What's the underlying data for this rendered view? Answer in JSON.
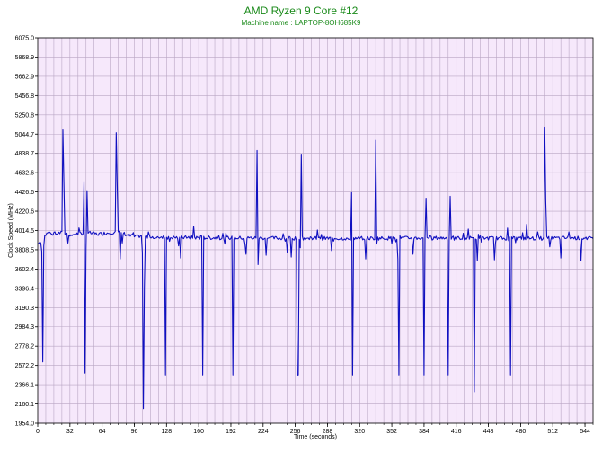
{
  "chart_data": {
    "type": "line",
    "title": "AMD Ryzen 9 Core #12",
    "subtitle": "Machine name : LAPTOP-8OH685K9",
    "xlabel": "Time (seconds)",
    "ylabel": "Clock Speed (MHz)",
    "xlim": [
      0,
      552
    ],
    "ylim": [
      1954.0,
      6075.0
    ],
    "x_ticks": [
      0,
      32,
      64,
      96,
      128,
      160,
      192,
      224,
      256,
      288,
      320,
      352,
      384,
      416,
      448,
      480,
      512,
      544
    ],
    "y_ticks": [
      "1954.0",
      "2160.1",
      "2366.1",
      "2572.2",
      "2778.2",
      "2984.3",
      "3190.3",
      "3396.4",
      "3602.4",
      "3808.5",
      "4014.5",
      "4220.6",
      "4426.6",
      "4632.6",
      "4838.7",
      "5044.7",
      "5250.8",
      "5456.8",
      "5662.9",
      "5868.9",
      "6075.0"
    ],
    "grid": true,
    "line_color": "#1010c0",
    "plot_bg": "#f6e8fb",
    "grid_color": "#b9a6c4",
    "series": [
      {
        "baseline": [
          [
            0,
            3880
          ],
          [
            3,
            3900
          ],
          [
            6,
            3950
          ],
          [
            10,
            3990
          ],
          [
            15,
            4000
          ],
          [
            20,
            3985
          ],
          [
            26,
            3990
          ],
          [
            32,
            3970
          ],
          [
            40,
            3980
          ],
          [
            50,
            3990
          ],
          [
            60,
            3975
          ],
          [
            70,
            3990
          ],
          [
            76,
            3995
          ],
          [
            85,
            3985
          ],
          [
            90,
            3960
          ],
          [
            96,
            3950
          ],
          [
            110,
            3950
          ],
          [
            130,
            3940
          ],
          [
            200,
            3935
          ],
          [
            300,
            3930
          ],
          [
            400,
            3935
          ],
          [
            500,
            3930
          ],
          [
            530,
            3935
          ],
          [
            552,
            3930
          ]
        ],
        "spikes": [
          [
            4,
            3790
          ],
          [
            5,
            2610
          ],
          [
            6,
            3850
          ],
          [
            25,
            5090
          ],
          [
            26,
            4520
          ],
          [
            30,
            3880
          ],
          [
            46,
            4540
          ],
          [
            47,
            2490
          ],
          [
            48,
            3820
          ],
          [
            49,
            4440
          ],
          [
            78,
            5060
          ],
          [
            79,
            4500
          ],
          [
            82,
            3710
          ],
          [
            84,
            3880
          ],
          [
            104,
            3780
          ],
          [
            105,
            2110
          ],
          [
            106,
            3400
          ],
          [
            110,
            4000
          ],
          [
            125,
            3960
          ],
          [
            127,
            2470
          ],
          [
            140,
            3850
          ],
          [
            142,
            3720
          ],
          [
            155,
            4060
          ],
          [
            164,
            2470
          ],
          [
            180,
            3960
          ],
          [
            186,
            3870
          ],
          [
            194,
            2470
          ],
          [
            206,
            3870
          ],
          [
            207,
            3760
          ],
          [
            218,
            4870
          ],
          [
            219,
            3650
          ],
          [
            227,
            3750
          ],
          [
            244,
            3980
          ],
          [
            246,
            3900
          ],
          [
            248,
            3780
          ],
          [
            252,
            3730
          ],
          [
            258,
            2470
          ],
          [
            259,
            2470
          ],
          [
            261,
            3830
          ],
          [
            262,
            4830
          ],
          [
            278,
            4020
          ],
          [
            292,
            3800
          ],
          [
            312,
            4420
          ],
          [
            313,
            2470
          ],
          [
            326,
            3710
          ],
          [
            336,
            4980
          ],
          [
            337,
            3870
          ],
          [
            358,
            3710
          ],
          [
            359,
            2470
          ],
          [
            360,
            3960
          ],
          [
            373,
            3760
          ],
          [
            384,
            2470
          ],
          [
            386,
            4360
          ],
          [
            408,
            2470
          ],
          [
            410,
            4380
          ],
          [
            428,
            4030
          ],
          [
            434,
            2290
          ],
          [
            437,
            3690
          ],
          [
            441,
            3890
          ],
          [
            454,
            3700
          ],
          [
            467,
            4040
          ],
          [
            470,
            2470
          ],
          [
            486,
            4080
          ],
          [
            497,
            4000
          ],
          [
            500,
            3950
          ],
          [
            504,
            5120
          ],
          [
            505,
            4330
          ],
          [
            509,
            3840
          ],
          [
            520,
            3720
          ],
          [
            528,
            4000
          ],
          [
            540,
            3690
          ]
        ]
      }
    ]
  }
}
